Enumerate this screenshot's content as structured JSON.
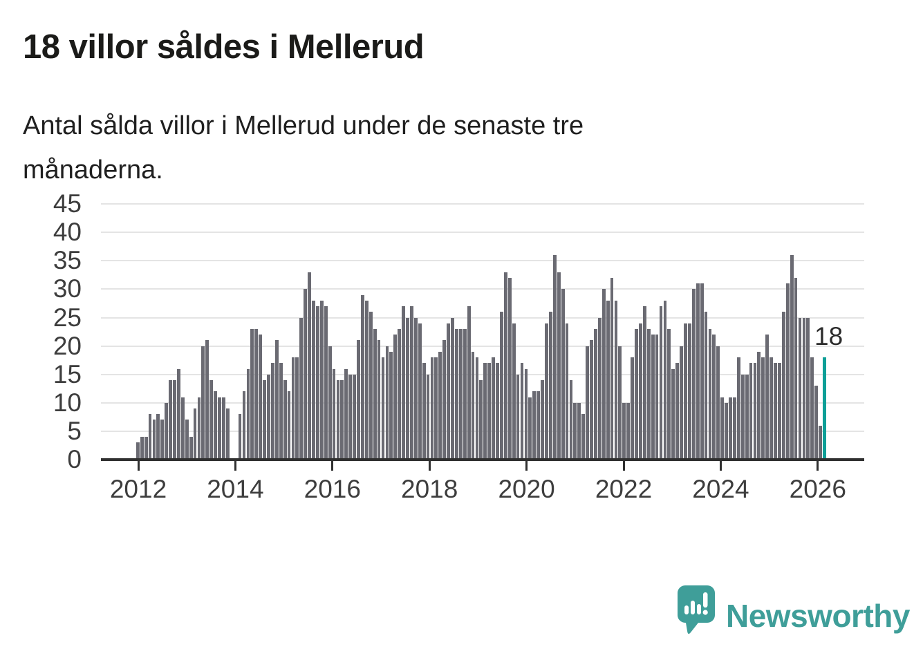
{
  "header": {
    "title": "18 villor såldes i Mellerud",
    "subtitle_lines": {
      "line1": "Antal sålda villor i Mellerud under de senaste tre",
      "line2": "månaderna."
    }
  },
  "chart_data": {
    "type": "bar",
    "title": "18 villor såldes i Mellerud",
    "subtitle": "Antal sålda villor i Mellerud under de senaste tre månaderna.",
    "frequency": "monthly",
    "x_start": "2012-01",
    "x_end": "2026-01",
    "ylabel": "",
    "xlabel": "",
    "ylim": [
      0,
      45
    ],
    "yticks": [
      0,
      5,
      10,
      15,
      20,
      25,
      30,
      35,
      40,
      45
    ],
    "xticks": [
      2012,
      2014,
      2016,
      2018,
      2020,
      2022,
      2024,
      2026
    ],
    "grid": "horizontal",
    "bar_color": "#6a6a72",
    "values": [
      3,
      4,
      4,
      8,
      7,
      8,
      7,
      10,
      14,
      14,
      16,
      11,
      7,
      4,
      9,
      11,
      20,
      21,
      14,
      12,
      11,
      11,
      9,
      0,
      0,
      8,
      12,
      16,
      23,
      23,
      22,
      14,
      15,
      17,
      21,
      17,
      14,
      12,
      18,
      18,
      25,
      30,
      33,
      28,
      27,
      28,
      27,
      20,
      16,
      14,
      14,
      16,
      15,
      15,
      21,
      29,
      28,
      26,
      23,
      21,
      18,
      20,
      19,
      22,
      23,
      27,
      25,
      27,
      25,
      24,
      17,
      15,
      18,
      18,
      19,
      21,
      24,
      25,
      23,
      23,
      23,
      27,
      19,
      18,
      14,
      17,
      17,
      18,
      17,
      26,
      33,
      32,
      24,
      15,
      17,
      16,
      11,
      12,
      12,
      14,
      24,
      26,
      36,
      33,
      30,
      24,
      14,
      10,
      10,
      8,
      20,
      21,
      23,
      25,
      30,
      28,
      32,
      28,
      20,
      10,
      10,
      18,
      23,
      24,
      27,
      23,
      22,
      22,
      27,
      28,
      23,
      16,
      17,
      20,
      24,
      24,
      30,
      31,
      31,
      26,
      23,
      22,
      20,
      11,
      10,
      11,
      11,
      18,
      15,
      15,
      17,
      17,
      19,
      18,
      22,
      18,
      17,
      17,
      26,
      31,
      36,
      32,
      25,
      25,
      25,
      18,
      13,
      6,
      18
    ],
    "highlight": {
      "index": 168,
      "value": 18,
      "label": "18",
      "color": "#0e9f97",
      "note": "latest three months, drawn in teal"
    }
  },
  "footer": {
    "logo_text": "Newsworthy",
    "logo_color": "#3f9e99"
  }
}
